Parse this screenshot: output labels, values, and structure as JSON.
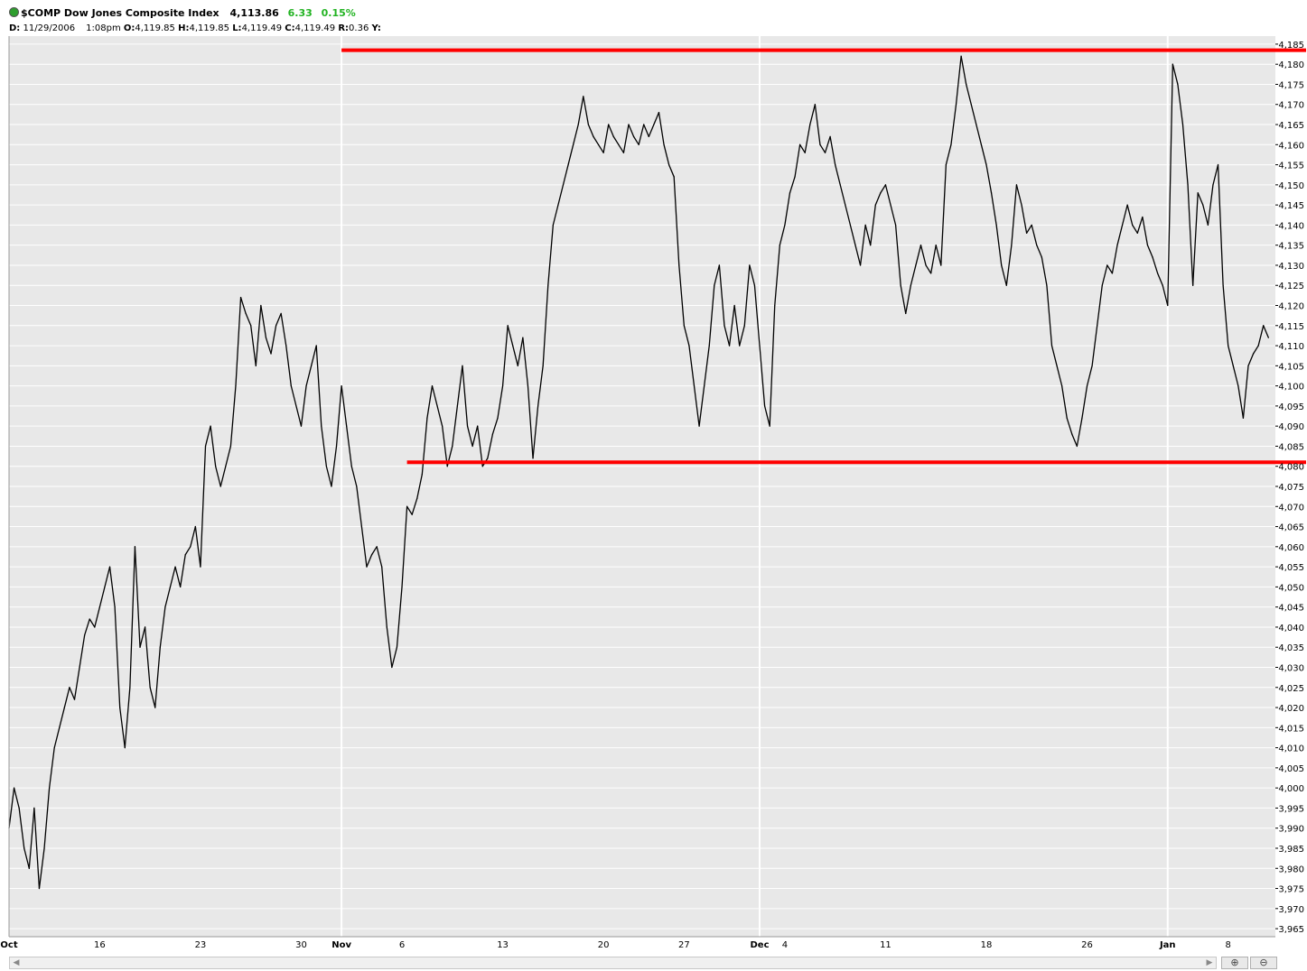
{
  "header": {
    "symbol_title": "$COMP Dow Jones Composite Index",
    "last": "4,113.86",
    "change": "6.33",
    "change_pct": "0.15%",
    "date_label": "D:",
    "date": "11/29/2006",
    "time": "1:08pm",
    "open_label": "O:",
    "open": "4,119.85",
    "high_label": "H:",
    "high": "4,119.85",
    "low_label": "L:",
    "low": "4,119.49",
    "close_label": "C:",
    "close": "4,119.49",
    "r_label": "R:",
    "r": "0.36",
    "y_label": "Y:"
  },
  "colors": {
    "price_line": "#000000",
    "trend_lines": "#ff0000",
    "change_positive": "#22b322",
    "plot_background": "#e8e8e8",
    "gridlines": "#ffffff"
  },
  "chart_data": {
    "type": "line",
    "title": "$COMP Dow Jones Composite Index",
    "xlabel": "",
    "ylabel": "",
    "ylim": [
      3963,
      4187
    ],
    "grid": true,
    "y_ticks": [
      3965,
      3970,
      3975,
      3980,
      3985,
      3990,
      3995,
      4000,
      4005,
      4010,
      4015,
      4020,
      4025,
      4030,
      4035,
      4040,
      4045,
      4050,
      4055,
      4060,
      4065,
      4070,
      4075,
      4080,
      4085,
      4090,
      4095,
      4100,
      4105,
      4110,
      4115,
      4120,
      4125,
      4130,
      4135,
      4140,
      4145,
      4150,
      4155,
      4160,
      4165,
      4170,
      4175,
      4180,
      4185
    ],
    "y_tick_labels": [
      "3,965",
      "3,970",
      "3,975",
      "3,980",
      "3,985",
      "3,990",
      "3,995",
      "4,000",
      "4,005",
      "4,010",
      "4,015",
      "4,020",
      "4,025",
      "4,030",
      "4,035",
      "4,040",
      "4,045",
      "4,050",
      "4,055",
      "4,060",
      "4,065",
      "4,070",
      "4,075",
      "4,080",
      "4,085",
      "4,090",
      "4,095",
      "4,100",
      "4,105",
      "4,110",
      "4,115",
      "4,120",
      "4,125",
      "4,130",
      "4,135",
      "4,140",
      "4,145",
      "4,150",
      "4,155",
      "4,160",
      "4,165",
      "4,170",
      "4,175",
      "4,180",
      "4,185"
    ],
    "x_tick_labels": [
      {
        "t": 0,
        "label": "Oct",
        "bold": true
      },
      {
        "t": 0.9,
        "label": "16",
        "bold": false
      },
      {
        "t": 1.9,
        "label": "23",
        "bold": false
      },
      {
        "t": 2.9,
        "label": "30",
        "bold": false
      },
      {
        "t": 3.3,
        "label": "Nov",
        "bold": true
      },
      {
        "t": 3.9,
        "label": "6",
        "bold": false
      },
      {
        "t": 4.9,
        "label": "13",
        "bold": false
      },
      {
        "t": 5.9,
        "label": "20",
        "bold": false
      },
      {
        "t": 6.7,
        "label": "27",
        "bold": false
      },
      {
        "t": 7.45,
        "label": "Dec",
        "bold": true
      },
      {
        "t": 7.7,
        "label": "4",
        "bold": false
      },
      {
        "t": 8.7,
        "label": "11",
        "bold": false
      },
      {
        "t": 9.7,
        "label": "18",
        "bold": false
      },
      {
        "t": 10.7,
        "label": "26",
        "bold": false
      },
      {
        "t": 11.5,
        "label": "Jan",
        "bold": true
      },
      {
        "t": 12.1,
        "label": "8",
        "bold": false
      }
    ],
    "x_gridlines": [
      3.3,
      7.45,
      11.5
    ],
    "x_range": [
      0,
      12.3
    ],
    "series": [
      {
        "points": [
          [
            0.0,
            3990
          ],
          [
            0.05,
            4000
          ],
          [
            0.1,
            3995
          ],
          [
            0.15,
            3985
          ],
          [
            0.2,
            3980
          ],
          [
            0.25,
            3995
          ],
          [
            0.3,
            3975
          ],
          [
            0.35,
            3985
          ],
          [
            0.4,
            4000
          ],
          [
            0.45,
            4010
          ],
          [
            0.5,
            4015
          ],
          [
            0.55,
            4020
          ],
          [
            0.6,
            4025
          ],
          [
            0.65,
            4022
          ],
          [
            0.7,
            4030
          ],
          [
            0.75,
            4038
          ],
          [
            0.8,
            4042
          ],
          [
            0.85,
            4040
          ],
          [
            0.9,
            4045
          ],
          [
            0.95,
            4050
          ],
          [
            1.0,
            4055
          ],
          [
            1.05,
            4045
          ],
          [
            1.1,
            4020
          ],
          [
            1.15,
            4010
          ],
          [
            1.2,
            4025
          ],
          [
            1.25,
            4060
          ],
          [
            1.3,
            4035
          ],
          [
            1.35,
            4040
          ],
          [
            1.4,
            4025
          ],
          [
            1.45,
            4020
          ],
          [
            1.5,
            4035
          ],
          [
            1.55,
            4045
          ],
          [
            1.6,
            4050
          ],
          [
            1.65,
            4055
          ],
          [
            1.7,
            4050
          ],
          [
            1.75,
            4058
          ],
          [
            1.8,
            4060
          ],
          [
            1.85,
            4065
          ],
          [
            1.9,
            4055
          ],
          [
            1.95,
            4085
          ],
          [
            2.0,
            4090
          ],
          [
            2.05,
            4080
          ],
          [
            2.1,
            4075
          ],
          [
            2.15,
            4080
          ],
          [
            2.2,
            4085
          ],
          [
            2.25,
            4100
          ],
          [
            2.3,
            4122
          ],
          [
            2.35,
            4118
          ],
          [
            2.4,
            4115
          ],
          [
            2.45,
            4105
          ],
          [
            2.5,
            4120
          ],
          [
            2.55,
            4112
          ],
          [
            2.6,
            4108
          ],
          [
            2.65,
            4115
          ],
          [
            2.7,
            4118
          ],
          [
            2.75,
            4110
          ],
          [
            2.8,
            4100
          ],
          [
            2.85,
            4095
          ],
          [
            2.9,
            4090
          ],
          [
            2.95,
            4100
          ],
          [
            3.0,
            4105
          ],
          [
            3.05,
            4110
          ],
          [
            3.1,
            4090
          ],
          [
            3.15,
            4080
          ],
          [
            3.2,
            4075
          ],
          [
            3.25,
            4085
          ],
          [
            3.3,
            4100
          ],
          [
            3.35,
            4090
          ],
          [
            3.4,
            4080
          ],
          [
            3.45,
            4075
          ],
          [
            3.5,
            4065
          ],
          [
            3.55,
            4055
          ],
          [
            3.6,
            4058
          ],
          [
            3.65,
            4060
          ],
          [
            3.7,
            4055
          ],
          [
            3.75,
            4040
          ],
          [
            3.8,
            4030
          ],
          [
            3.85,
            4035
          ],
          [
            3.9,
            4050
          ],
          [
            3.95,
            4070
          ],
          [
            4.0,
            4068
          ],
          [
            4.05,
            4072
          ],
          [
            4.1,
            4078
          ],
          [
            4.15,
            4092
          ],
          [
            4.2,
            4100
          ],
          [
            4.25,
            4095
          ],
          [
            4.3,
            4090
          ],
          [
            4.35,
            4080
          ],
          [
            4.4,
            4085
          ],
          [
            4.45,
            4095
          ],
          [
            4.5,
            4105
          ],
          [
            4.55,
            4090
          ],
          [
            4.6,
            4085
          ],
          [
            4.65,
            4090
          ],
          [
            4.7,
            4080
          ],
          [
            4.75,
            4082
          ],
          [
            4.8,
            4088
          ],
          [
            4.85,
            4092
          ],
          [
            4.9,
            4100
          ],
          [
            4.95,
            4115
          ],
          [
            5.0,
            4110
          ],
          [
            5.05,
            4105
          ],
          [
            5.1,
            4112
          ],
          [
            5.15,
            4100
          ],
          [
            5.2,
            4082
          ],
          [
            5.25,
            4095
          ],
          [
            5.3,
            4105
          ],
          [
            5.35,
            4125
          ],
          [
            5.4,
            4140
          ],
          [
            5.45,
            4145
          ],
          [
            5.5,
            4150
          ],
          [
            5.55,
            4155
          ],
          [
            5.6,
            4160
          ],
          [
            5.65,
            4165
          ],
          [
            5.7,
            4172
          ],
          [
            5.75,
            4165
          ],
          [
            5.8,
            4162
          ],
          [
            5.85,
            4160
          ],
          [
            5.9,
            4158
          ],
          [
            5.95,
            4165
          ],
          [
            6.0,
            4162
          ],
          [
            6.05,
            4160
          ],
          [
            6.1,
            4158
          ],
          [
            6.15,
            4165
          ],
          [
            6.2,
            4162
          ],
          [
            6.25,
            4160
          ],
          [
            6.3,
            4165
          ],
          [
            6.35,
            4162
          ],
          [
            6.4,
            4165
          ],
          [
            6.45,
            4168
          ],
          [
            6.5,
            4160
          ],
          [
            6.55,
            4155
          ],
          [
            6.6,
            4152
          ],
          [
            6.65,
            4130
          ],
          [
            6.7,
            4115
          ],
          [
            6.75,
            4110
          ],
          [
            6.8,
            4100
          ],
          [
            6.85,
            4090
          ],
          [
            6.9,
            4100
          ],
          [
            6.95,
            4110
          ],
          [
            7.0,
            4125
          ],
          [
            7.05,
            4130
          ],
          [
            7.1,
            4115
          ],
          [
            7.15,
            4110
          ],
          [
            7.2,
            4120
          ],
          [
            7.25,
            4110
          ],
          [
            7.3,
            4115
          ],
          [
            7.35,
            4130
          ],
          [
            7.4,
            4125
          ],
          [
            7.45,
            4110
          ],
          [
            7.5,
            4095
          ],
          [
            7.55,
            4090
          ],
          [
            7.6,
            4120
          ],
          [
            7.65,
            4135
          ],
          [
            7.7,
            4140
          ],
          [
            7.75,
            4148
          ],
          [
            7.8,
            4152
          ],
          [
            7.85,
            4160
          ],
          [
            7.9,
            4158
          ],
          [
            7.95,
            4165
          ],
          [
            8.0,
            4170
          ],
          [
            8.05,
            4160
          ],
          [
            8.1,
            4158
          ],
          [
            8.15,
            4162
          ],
          [
            8.2,
            4155
          ],
          [
            8.25,
            4150
          ],
          [
            8.3,
            4145
          ],
          [
            8.35,
            4140
          ],
          [
            8.4,
            4135
          ],
          [
            8.45,
            4130
          ],
          [
            8.5,
            4140
          ],
          [
            8.55,
            4135
          ],
          [
            8.6,
            4145
          ],
          [
            8.65,
            4148
          ],
          [
            8.7,
            4150
          ],
          [
            8.75,
            4145
          ],
          [
            8.8,
            4140
          ],
          [
            8.85,
            4125
          ],
          [
            8.9,
            4118
          ],
          [
            8.95,
            4125
          ],
          [
            9.0,
            4130
          ],
          [
            9.05,
            4135
          ],
          [
            9.1,
            4130
          ],
          [
            9.15,
            4128
          ],
          [
            9.2,
            4135
          ],
          [
            9.25,
            4130
          ],
          [
            9.3,
            4155
          ],
          [
            9.35,
            4160
          ],
          [
            9.4,
            4170
          ],
          [
            9.45,
            4182
          ],
          [
            9.5,
            4175
          ],
          [
            9.55,
            4170
          ],
          [
            9.6,
            4165
          ],
          [
            9.65,
            4160
          ],
          [
            9.7,
            4155
          ],
          [
            9.75,
            4148
          ],
          [
            9.8,
            4140
          ],
          [
            9.85,
            4130
          ],
          [
            9.9,
            4125
          ],
          [
            9.95,
            4135
          ],
          [
            10.0,
            4150
          ],
          [
            10.05,
            4145
          ],
          [
            10.1,
            4138
          ],
          [
            10.15,
            4140
          ],
          [
            10.2,
            4135
          ],
          [
            10.25,
            4132
          ],
          [
            10.3,
            4125
          ],
          [
            10.35,
            4110
          ],
          [
            10.4,
            4105
          ],
          [
            10.45,
            4100
          ],
          [
            10.5,
            4092
          ],
          [
            10.55,
            4088
          ],
          [
            10.6,
            4085
          ],
          [
            10.65,
            4092
          ],
          [
            10.7,
            4100
          ],
          [
            10.75,
            4105
          ],
          [
            10.8,
            4115
          ],
          [
            10.85,
            4125
          ],
          [
            10.9,
            4130
          ],
          [
            10.95,
            4128
          ],
          [
            11.0,
            4135
          ],
          [
            11.05,
            4140
          ],
          [
            11.1,
            4145
          ],
          [
            11.15,
            4140
          ],
          [
            11.2,
            4138
          ],
          [
            11.25,
            4142
          ],
          [
            11.3,
            4135
          ],
          [
            11.35,
            4132
          ],
          [
            11.4,
            4128
          ],
          [
            11.45,
            4125
          ],
          [
            11.5,
            4120
          ],
          [
            11.55,
            4180
          ],
          [
            11.6,
            4175
          ],
          [
            11.65,
            4165
          ],
          [
            11.7,
            4150
          ],
          [
            11.75,
            4125
          ],
          [
            11.8,
            4148
          ],
          [
            11.85,
            4145
          ],
          [
            11.9,
            4140
          ],
          [
            11.95,
            4150
          ],
          [
            12.0,
            4155
          ],
          [
            12.05,
            4125
          ],
          [
            12.1,
            4110
          ],
          [
            12.15,
            4105
          ],
          [
            12.2,
            4100
          ],
          [
            12.25,
            4092
          ],
          [
            12.3,
            4105
          ],
          [
            12.35,
            4108
          ],
          [
            12.4,
            4110
          ],
          [
            12.45,
            4115
          ],
          [
            12.5,
            4112
          ]
        ]
      }
    ],
    "annotations": [
      {
        "type": "horizontal-line",
        "y": 4183.5,
        "x_start": 3.3,
        "x_end": 12.9
      },
      {
        "type": "horizontal-line",
        "y": 4081.0,
        "x_start": 3.95,
        "x_end": 12.9
      }
    ]
  },
  "scrollbar": {
    "left_arrow": "◀",
    "right_arrow": "▶"
  },
  "zoom": {
    "zoom_in_icon": "⊕",
    "zoom_out_icon": "⊖"
  }
}
